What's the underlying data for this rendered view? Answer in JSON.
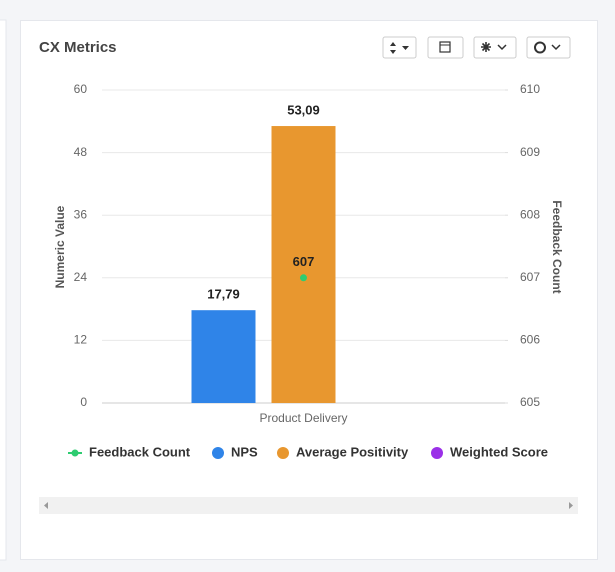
{
  "chart_data": {
    "type": "bar",
    "title": "CX Metrics",
    "categories": [
      "Product Delivery"
    ],
    "series": [
      {
        "name": "Feedback Count",
        "type": "line",
        "color": "#2ecc71",
        "axis": "y2",
        "values": [
          607
        ]
      },
      {
        "name": "NPS",
        "type": "bar",
        "color": "#2f84e8",
        "values": [
          17.79
        ],
        "value_labels": [
          "17,79"
        ]
      },
      {
        "name": "Average Positivity",
        "type": "bar",
        "color": "#e8972f",
        "values": [
          53.09
        ],
        "value_labels": [
          "53,09"
        ]
      },
      {
        "name": "Weighted Score",
        "type": "bar",
        "color": "#9b30e8",
        "values": [
          null
        ]
      }
    ],
    "y_label": "Numeric Value",
    "y2_label": "Feedback Count",
    "ylim": [
      0,
      60
    ],
    "yticks": [
      0,
      12,
      24,
      36,
      48,
      60
    ],
    "y2lim": [
      605,
      610
    ],
    "y2ticks": [
      605,
      606,
      607,
      608,
      609,
      610
    ],
    "grid": true,
    "legend": "bottom"
  }
}
